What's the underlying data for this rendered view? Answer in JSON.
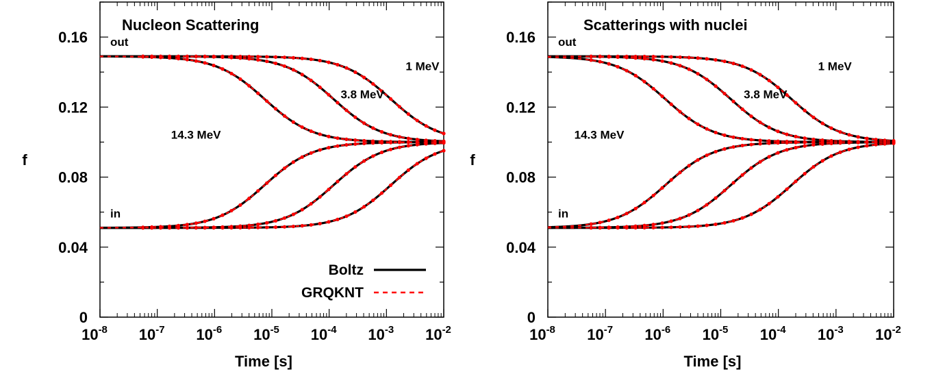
{
  "chart_data": [
    {
      "type": "line",
      "title": "Nucleon Scattering",
      "xlabel": "Time [s]",
      "ylabel": "f",
      "xscale": "log",
      "xlim": [
        "1e-8",
        "1e-2"
      ],
      "ylim": [
        0,
        0.18
      ],
      "x_ticks": [
        {
          "base": "10",
          "exp": "-8"
        },
        {
          "base": "10",
          "exp": "-7"
        },
        {
          "base": "10",
          "exp": "-6"
        },
        {
          "base": "10",
          "exp": "-5"
        },
        {
          "base": "10",
          "exp": "-4"
        },
        {
          "base": "10",
          "exp": "-3"
        },
        {
          "base": "10",
          "exp": "-2"
        }
      ],
      "y_ticks": [
        "0",
        "0.04",
        "0.08",
        "0.12",
        "0.16"
      ],
      "y_tick_values": [
        0,
        0.04,
        0.08,
        0.12,
        0.16
      ],
      "f_out_initial": 0.149,
      "f_in_initial": 0.051,
      "f_equilibrium": 0.1,
      "curves": [
        {
          "energy": "1 MeV",
          "midpoint_time_s": 0.0012
        },
        {
          "energy": "3.8 MeV",
          "midpoint_time_s": 0.00012
        },
        {
          "energy": "14.3 MeV",
          "midpoint_time_s": 7.5e-06
        }
      ],
      "annotations": {
        "out": "out",
        "in": "in"
      },
      "legend": {
        "placement": "bottom-right",
        "entries": [
          {
            "name": "Boltz",
            "color": "#000000",
            "style": "solid"
          },
          {
            "name": "GRQKNT",
            "color": "#ff0000",
            "style": "dashed"
          }
        ]
      }
    },
    {
      "type": "line",
      "title": "Scatterings with nuclei",
      "xlabel": "Time [s]",
      "ylabel": "f",
      "xscale": "log",
      "xlim": [
        "1e-8",
        "1e-2"
      ],
      "ylim": [
        0,
        0.18
      ],
      "x_ticks": [
        {
          "base": "10",
          "exp": "-8"
        },
        {
          "base": "10",
          "exp": "-7"
        },
        {
          "base": "10",
          "exp": "-6"
        },
        {
          "base": "10",
          "exp": "-5"
        },
        {
          "base": "10",
          "exp": "-4"
        },
        {
          "base": "10",
          "exp": "-3"
        },
        {
          "base": "10",
          "exp": "-2"
        }
      ],
      "y_ticks": [
        "0",
        "0.04",
        "0.08",
        "0.12",
        "0.16"
      ],
      "y_tick_values": [
        0,
        0.04,
        0.08,
        0.12,
        0.16
      ],
      "f_out_initial": 0.149,
      "f_in_initial": 0.051,
      "f_equilibrium": 0.1,
      "curves": [
        {
          "energy": "1 MeV",
          "midpoint_time_s": 0.00017
        },
        {
          "energy": "3.8 MeV",
          "midpoint_time_s": 1.5e-05
        },
        {
          "energy": "14.3 MeV",
          "midpoint_time_s": 1.1e-06
        }
      ],
      "annotations": {
        "out": "out",
        "in": "in"
      }
    }
  ],
  "colors": {
    "boltz": "#000000",
    "grqknt": "#ff0000"
  }
}
